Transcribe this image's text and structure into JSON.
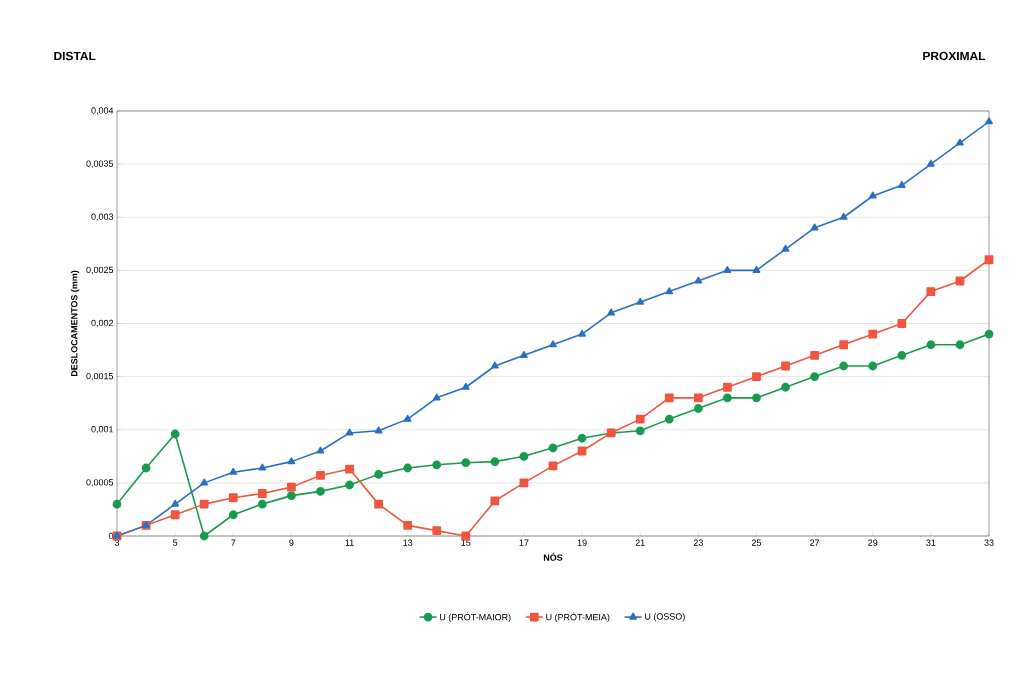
{
  "chart_data": {
    "type": "line",
    "xlabel": "NÓS",
    "ylabel": "DESLOCAMENTOS (mm)",
    "x": [
      3,
      4,
      5,
      6,
      7,
      8,
      9,
      10,
      11,
      12,
      13,
      14,
      15,
      16,
      17,
      18,
      19,
      20,
      21,
      22,
      23,
      24,
      25,
      26,
      27,
      28,
      29,
      30,
      31,
      32,
      33
    ],
    "series": [
      {
        "name": "U (PRÓT-MAIOR)",
        "color": "#1a9a50",
        "marker": "circle",
        "values": [
          0.0003,
          0.00064,
          0.00096,
          0,
          0.0002,
          0.0003,
          0.00038,
          0.00042,
          0.00048,
          0.00058,
          0.00064,
          0.00067,
          0.00069,
          0.0007,
          0.00075,
          0.00083,
          0.00092,
          0.00097,
          0.00099,
          0.0011,
          0.0012,
          0.0013,
          0.0013,
          0.0014,
          0.0015,
          0.0016,
          0.0016,
          0.0017,
          0.0018,
          0.0018,
          0.0019
        ]
      },
      {
        "name": "U (PRÓT-MEIA)",
        "color": "#f0553f",
        "marker": "square",
        "values": [
          0,
          0.0001,
          0.0002,
          0.0003,
          0.00036,
          0.0004,
          0.00046,
          0.00057,
          0.00063,
          0.0003,
          0.0001,
          5e-05,
          0,
          0.00033,
          0.0005,
          0.00066,
          0.0008,
          0.00097,
          0.0011,
          0.0013,
          0.0013,
          0.0014,
          0.0015,
          0.0016,
          0.0017,
          0.0018,
          0.0019,
          0.002,
          0.0023,
          0.0024,
          0.0026
        ]
      },
      {
        "name": "U (OSSO)",
        "color": "#2a6fc0",
        "marker": "triangle",
        "values": [
          0,
          0.0001,
          0.0003,
          0.0005,
          0.0006,
          0.00064,
          0.0007,
          0.0008,
          0.00097,
          0.00099,
          0.0011,
          0.0013,
          0.0014,
          0.0016,
          0.0017,
          0.0018,
          0.0019,
          0.0021,
          0.0022,
          0.0023,
          0.0024,
          0.0025,
          0.0025,
          0.0027,
          0.0029,
          0.003,
          0.0032,
          0.0033,
          0.0035,
          0.0037,
          0.0039
        ]
      }
    ],
    "xlim": [
      3,
      33
    ],
    "xticks": [
      3,
      5,
      7,
      9,
      11,
      13,
      15,
      17,
      19,
      21,
      23,
      25,
      27,
      29,
      31,
      33
    ],
    "ylim": [
      0,
      0.004
    ],
    "yticks": [
      {
        "value": 0,
        "label": "0"
      },
      {
        "value": 0.0005,
        "label": "0,0005"
      },
      {
        "value": 0.001,
        "label": "0,001"
      },
      {
        "value": 0.0015,
        "label": "0,0015"
      },
      {
        "value": 0.002,
        "label": "0,002"
      },
      {
        "value": 0.0025,
        "label": "0,0025"
      },
      {
        "value": 0.003,
        "label": "0,003"
      },
      {
        "value": 0.0035,
        "label": "0,0035"
      },
      {
        "value": 0.004,
        "label": "0,004"
      }
    ],
    "grid": "y",
    "legend": "bottom",
    "line_style": "solid",
    "annotations": [
      "DISTAL",
      "PROXIMAL"
    ]
  }
}
